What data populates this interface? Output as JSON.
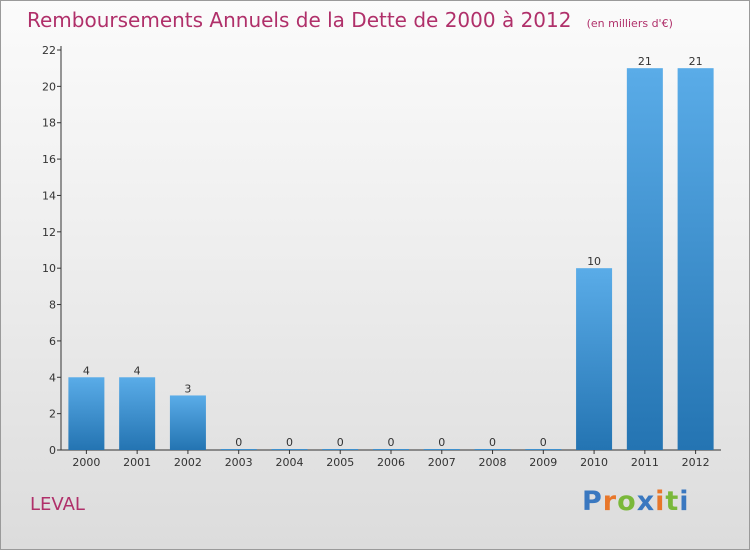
{
  "chart_data": {
    "type": "bar",
    "title": "Remboursements Annuels de la Dette de 2000 à 2012",
    "subtitle": "(en milliers d'€)",
    "categories": [
      "2000",
      "2001",
      "2002",
      "2003",
      "2004",
      "2005",
      "2006",
      "2007",
      "2008",
      "2009",
      "2010",
      "2011",
      "2012"
    ],
    "values": [
      4,
      4,
      3,
      0,
      0,
      0,
      0,
      0,
      0,
      0,
      10,
      21,
      21
    ],
    "value_labels": [
      "4",
      "4",
      "3",
      "0",
      "0",
      "0",
      "0",
      "0",
      "0",
      "0",
      "10",
      "21",
      "21"
    ],
    "ylim": [
      0,
      22
    ],
    "yticks": [
      "0",
      "2",
      "4",
      "6",
      "8",
      "10",
      "12",
      "14",
      "16",
      "18",
      "20",
      "22"
    ],
    "xlabel": "",
    "ylabel": "",
    "grid": false,
    "legend": "none",
    "colors": {
      "bar_light": "#5aace8",
      "bar_dark": "#2474b2",
      "title": "#b0306a"
    }
  },
  "commune": "LEVAL",
  "logo": {
    "letters": [
      "P",
      "r",
      "o",
      "x",
      "i",
      "t",
      "i"
    ],
    "colors": [
      "#3a78c0",
      "#e8772a",
      "#7ab83a",
      "#3a78c0",
      "#e8772a",
      "#7ab83a",
      "#3a78c0"
    ]
  }
}
